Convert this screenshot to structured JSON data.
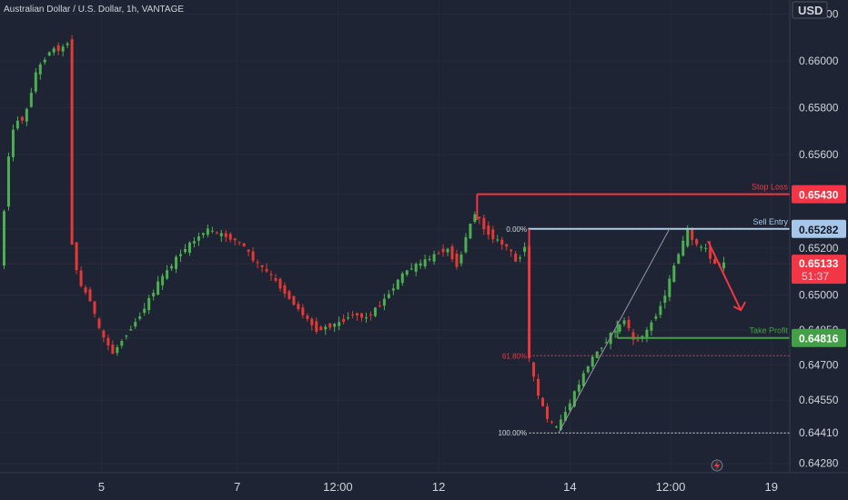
{
  "header": {
    "title": "Australian Dollar / U.S. Dollar, 1h, VANTAGE",
    "currency": "USD"
  },
  "chart_data": {
    "type": "candlestick",
    "title": "Australian Dollar / U.S. Dollar, 1h, VANTAGE",
    "price_unit": "USD",
    "ylim": [
      0.6424,
      0.6626
    ],
    "y_ticks": [
      "0.66200",
      "0.66000",
      "0.65800",
      "0.65600",
      "0.65430",
      "0.65282",
      "0.65200",
      "0.65133",
      "0.65000",
      "0.64850",
      "0.64816",
      "0.64700",
      "0.64550",
      "0.64410",
      "0.64280"
    ],
    "x_tick_labels": [
      "5",
      "7",
      "12:00",
      "12",
      "14",
      "12:00",
      "19"
    ],
    "current_price": "0.65133",
    "countdown": "51:37",
    "annotations": {
      "stop_loss": {
        "label": "Stop Loss",
        "price": "0.65430",
        "color": "#f23645"
      },
      "sell_entry": {
        "label": "Sell Entry",
        "price": "0.65282",
        "color": "#a7c7ea"
      },
      "take_profit": {
        "label": "Take Profit",
        "price": "0.64816",
        "color": "#43a047"
      },
      "fib_levels": [
        {
          "label": "0.00%",
          "price": 0.65282
        },
        {
          "label": "61.80%",
          "price": 0.6474
        },
        {
          "label": "100.00%",
          "price": 0.6441
        }
      ]
    },
    "path_points": [
      [
        0,
        0.6512
      ],
      [
        3,
        0.653
      ],
      [
        8,
        0.656
      ],
      [
        14,
        0.6575
      ],
      [
        22,
        0.6575
      ],
      [
        32,
        0.6595
      ],
      [
        45,
        0.6605
      ],
      [
        55,
        0.6605
      ],
      [
        60,
        0.6608
      ],
      [
        61,
        0.6545
      ],
      [
        63,
        0.6525
      ],
      [
        70,
        0.6505
      ],
      [
        80,
        0.6498
      ],
      [
        88,
        0.6485
      ],
      [
        100,
        0.6475
      ],
      [
        103,
        0.6477
      ],
      [
        110,
        0.6482
      ],
      [
        125,
        0.6492
      ],
      [
        140,
        0.6505
      ],
      [
        160,
        0.6518
      ],
      [
        183,
        0.6528
      ],
      [
        200,
        0.6525
      ],
      [
        214,
        0.6522
      ],
      [
        224,
        0.6515
      ],
      [
        240,
        0.6508
      ],
      [
        262,
        0.6495
      ],
      [
        280,
        0.6485
      ],
      [
        300,
        0.6488
      ],
      [
        312,
        0.6492
      ],
      [
        324,
        0.649
      ],
      [
        340,
        0.6498
      ],
      [
        358,
        0.651
      ],
      [
        378,
        0.6515
      ],
      [
        395,
        0.652
      ],
      [
        405,
        0.6512
      ],
      [
        412,
        0.6525
      ],
      [
        420,
        0.6535
      ],
      [
        430,
        0.6527
      ],
      [
        440,
        0.6523
      ],
      [
        450,
        0.652
      ],
      [
        456,
        0.6514
      ],
      [
        462,
        0.6518
      ],
      [
        465,
        0.6523
      ],
      [
        466,
        0.6477
      ],
      [
        475,
        0.6458
      ],
      [
        485,
        0.6446
      ],
      [
        492,
        0.6443
      ],
      [
        498,
        0.6448
      ],
      [
        510,
        0.646
      ],
      [
        522,
        0.6472
      ],
      [
        540,
        0.6483
      ],
      [
        548,
        0.6487
      ],
      [
        553,
        0.649
      ],
      [
        560,
        0.648
      ],
      [
        570,
        0.6483
      ],
      [
        585,
        0.6496
      ],
      [
        600,
        0.6518
      ],
      [
        608,
        0.6527
      ],
      [
        618,
        0.652
      ],
      [
        625,
        0.652
      ],
      [
        630,
        0.6513
      ],
      [
        640,
        0.6513
      ]
    ]
  }
}
